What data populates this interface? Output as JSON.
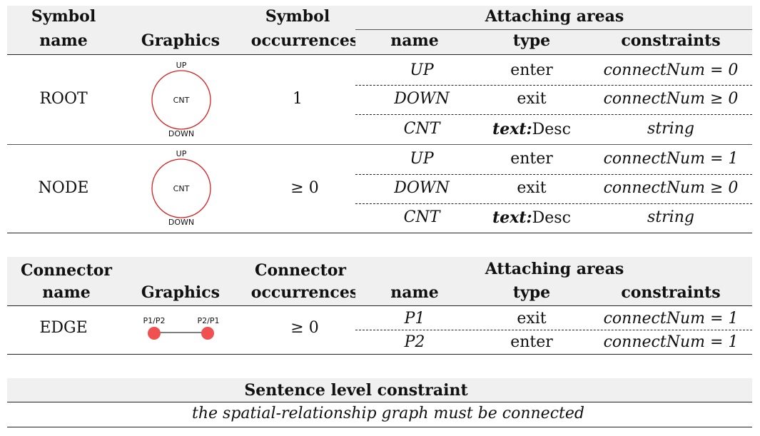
{
  "symbols_table": {
    "headers": {
      "symbol_name_1": "Symbol",
      "symbol_name_2": "name",
      "graphics": "Graphics",
      "occurrences_1": "Symbol",
      "occurrences_2": "occurrences",
      "attaching_areas": "Attaching areas",
      "aa_name": "name",
      "aa_type": "type",
      "aa_constraints": "constraints"
    },
    "rows": [
      {
        "name": "ROOT",
        "occurrences": "1",
        "graphic_labels": {
          "top": "UP",
          "center": "CNT",
          "bottom": "DOWN"
        },
        "areas": [
          {
            "name": "UP",
            "type": "enter",
            "constraint": "connectNum = 0"
          },
          {
            "name": "DOWN",
            "type": "exit",
            "constraint": "connectNum ≥ 0"
          },
          {
            "name": "CNT",
            "type_bold": "text:",
            "type": "Desc",
            "constraint": "string"
          }
        ]
      },
      {
        "name": "NODE",
        "occurrences": "≥ 0",
        "graphic_labels": {
          "top": "UP",
          "center": "CNT",
          "bottom": "DOWN"
        },
        "areas": [
          {
            "name": "UP",
            "type": "enter",
            "constraint": "connectNum = 1"
          },
          {
            "name": "DOWN",
            "type": "exit",
            "constraint": "connectNum ≥ 0"
          },
          {
            "name": "CNT",
            "type_bold": "text:",
            "type": "Desc",
            "constraint": "string"
          }
        ]
      }
    ]
  },
  "connectors_table": {
    "headers": {
      "connector_name_1": "Connector",
      "connector_name_2": "name",
      "graphics": "Graphics",
      "occurrences_1": "Connector",
      "occurrences_2": "occurrences",
      "attaching_areas": "Attaching areas",
      "aa_name": "name",
      "aa_type": "type",
      "aa_constraints": "constraints"
    },
    "rows": [
      {
        "name": "EDGE",
        "occurrences": "≥ 0",
        "graphic_labels": {
          "left": "P1/P2",
          "right": "P2/P1"
        },
        "areas": [
          {
            "name": "P1",
            "type": "exit",
            "constraint": "connectNum = 1"
          },
          {
            "name": "P2",
            "type": "enter",
            "constraint": "connectNum = 1"
          }
        ]
      }
    ]
  },
  "sentence_table": {
    "header": "Sentence level constraint",
    "constraint": "the spatial-relationship graph must be connected"
  },
  "colors": {
    "header_bg": "#f0f0f0",
    "circle_stroke": "#d62020",
    "connector_dot": "#f05050"
  }
}
